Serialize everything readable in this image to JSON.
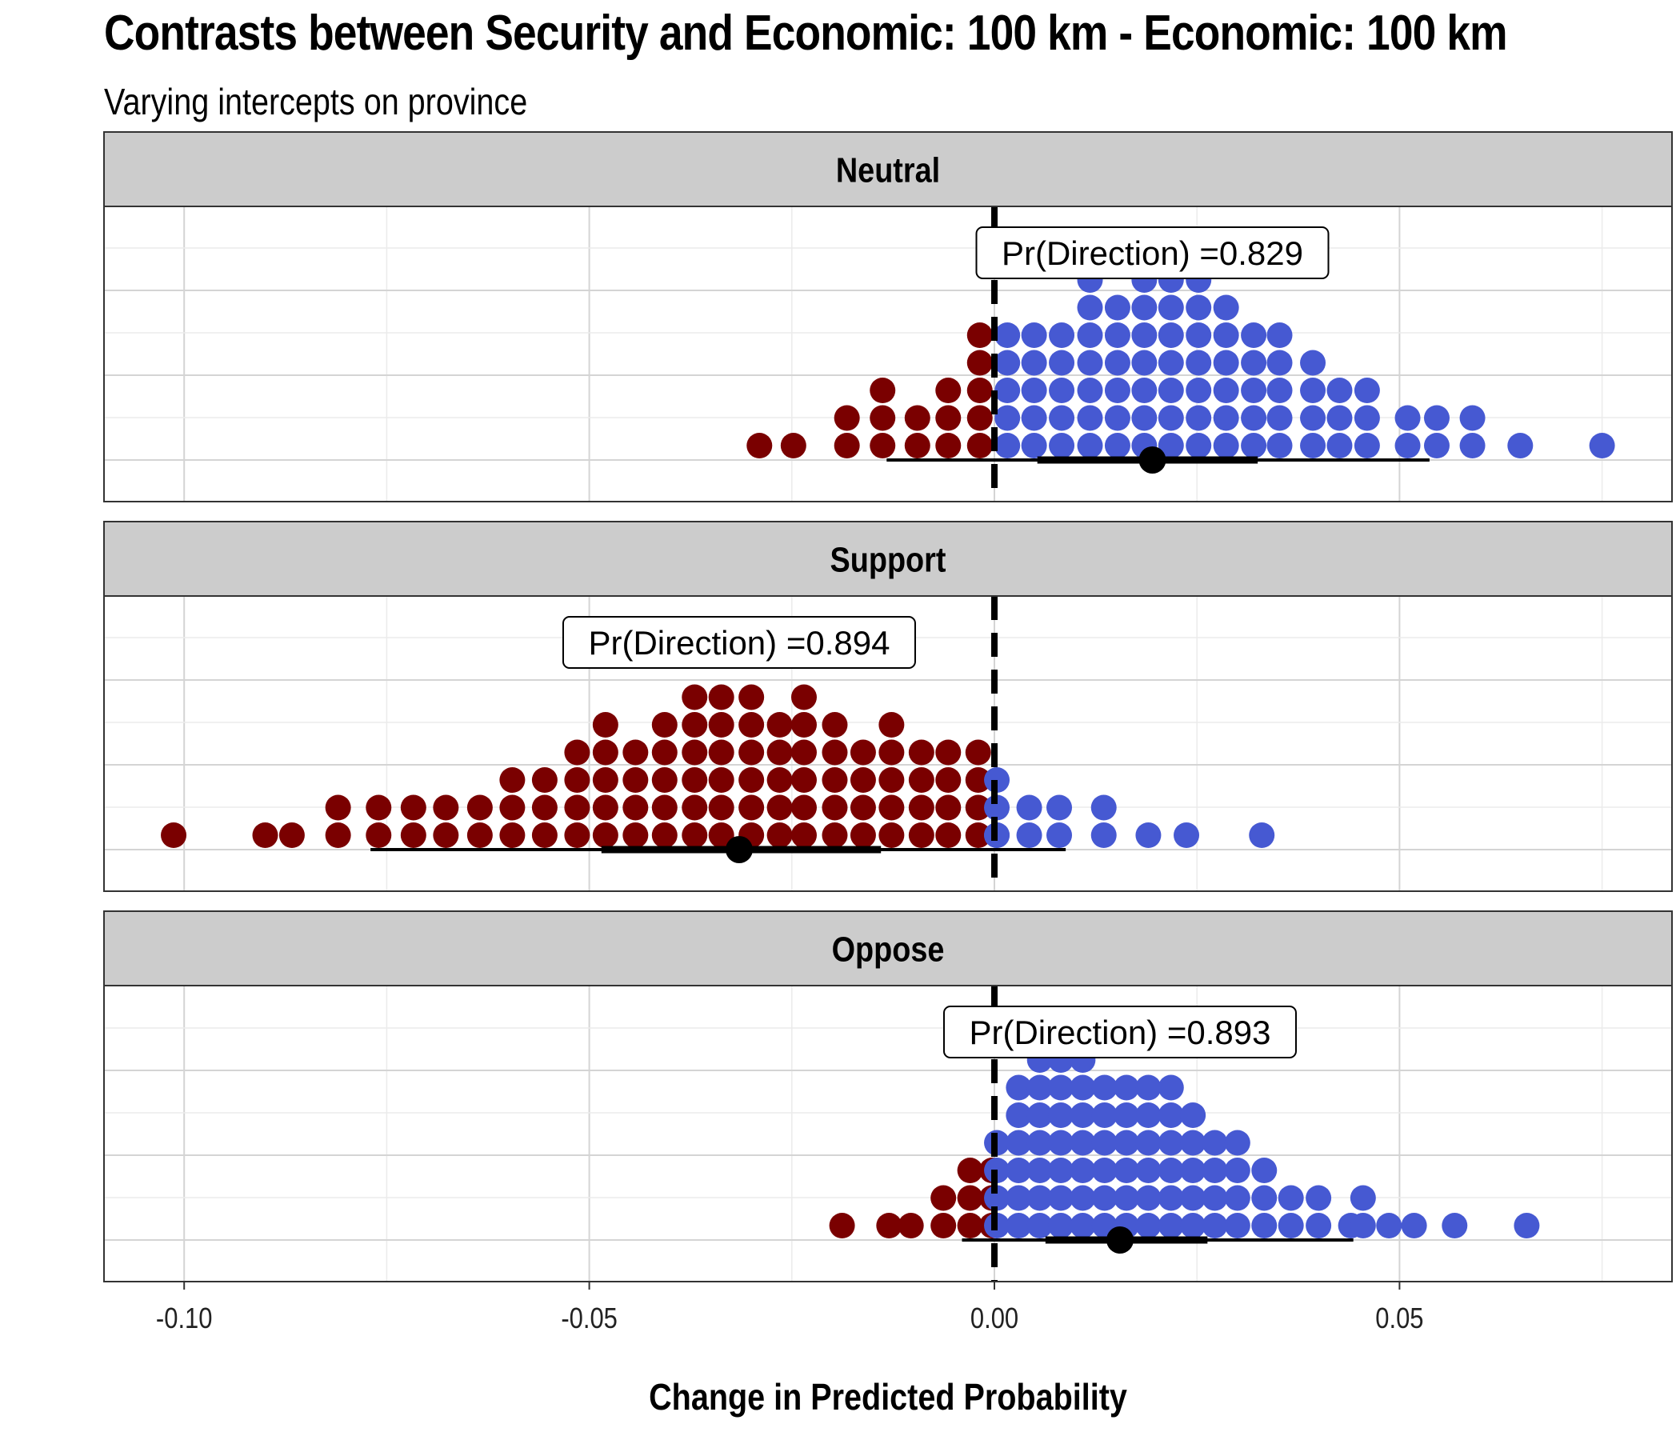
{
  "chart_data": {
    "type": "dotplot",
    "title": "Contrasts between Security and Economic: 100 km - Economic: 100 km",
    "subtitle": "Varying intercepts on province",
    "xlabel": "Change in Predicted Probability",
    "xlim": [
      -0.11,
      0.083
    ],
    "xticks": [
      -0.1,
      -0.05,
      0.0,
      0.05
    ],
    "xtick_labels": [
      "-0.10",
      "-0.05",
      "0.00",
      "0.05"
    ],
    "reference_line": 0,
    "colors": {
      "negative": "#7a0000",
      "positive": "#4659d2",
      "strip": "#cccccc",
      "interval": "#000000"
    },
    "panels": [
      {
        "name": "Neutral",
        "label": "Pr(Direction) =0.829",
        "label_x": 0.0195,
        "point": 0.0195,
        "interval_66": [
          0.0053,
          0.0325
        ],
        "interval_95": [
          -0.0133,
          0.0537
        ],
        "columns": [
          [
            -0.029,
            1
          ],
          [
            -0.0248,
            1
          ],
          [
            -0.0182,
            2
          ],
          [
            -0.0138,
            3
          ],
          [
            -0.0095,
            2
          ],
          [
            -0.0057,
            3
          ],
          [
            -0.0018,
            5
          ],
          [
            0.0016,
            5
          ],
          [
            0.0049,
            5
          ],
          [
            0.0083,
            5
          ],
          [
            0.0118,
            7
          ],
          [
            0.0152,
            6
          ],
          [
            0.0185,
            7
          ],
          [
            0.0218,
            7
          ],
          [
            0.0252,
            7
          ],
          [
            0.0286,
            6
          ],
          [
            0.032,
            5
          ],
          [
            0.0352,
            5
          ],
          [
            0.0393,
            4
          ],
          [
            0.0426,
            3
          ],
          [
            0.046,
            3
          ],
          [
            0.051,
            2
          ],
          [
            0.0546,
            2
          ],
          [
            0.059,
            2
          ],
          [
            0.0649,
            1
          ],
          [
            0.075,
            1
          ]
        ]
      },
      {
        "name": "Support",
        "label": "Pr(Direction) =0.894",
        "label_x": -0.0315,
        "point": -0.0315,
        "interval_66": [
          -0.0485,
          -0.014
        ],
        "interval_95": [
          -0.077,
          0.0088
        ],
        "columns": [
          [
            -0.1013,
            1
          ],
          [
            -0.09,
            1
          ],
          [
            -0.0867,
            1
          ],
          [
            -0.081,
            2
          ],
          [
            -0.076,
            2
          ],
          [
            -0.0717,
            2
          ],
          [
            -0.0677,
            2
          ],
          [
            -0.0635,
            2
          ],
          [
            -0.0595,
            3
          ],
          [
            -0.0555,
            3
          ],
          [
            -0.0515,
            4
          ],
          [
            -0.048,
            5
          ],
          [
            -0.0443,
            4
          ],
          [
            -0.0407,
            5
          ],
          [
            -0.037,
            6
          ],
          [
            -0.0337,
            6
          ],
          [
            -0.03,
            6
          ],
          [
            -0.0265,
            5
          ],
          [
            -0.0235,
            6
          ],
          [
            -0.0197,
            5
          ],
          [
            -0.0162,
            4
          ],
          [
            -0.0127,
            5
          ],
          [
            -0.009,
            4
          ],
          [
            -0.0057,
            4
          ],
          [
            -0.002,
            4
          ],
          [
            0.0003,
            1
          ],
          [
            0.0003,
            3
          ],
          [
            0.0043,
            2
          ],
          [
            0.008,
            2
          ],
          [
            0.0135,
            2
          ],
          [
            0.019,
            1
          ],
          [
            0.0237,
            1
          ],
          [
            0.033,
            1
          ]
        ]
      },
      {
        "name": "Oppose",
        "label": "Pr(Direction) =0.893",
        "label_x": 0.0155,
        "point": 0.0155,
        "interval_66": [
          0.0063,
          0.0263
        ],
        "interval_95": [
          -0.004,
          0.0443
        ],
        "columns": [
          [
            -0.0188,
            1
          ],
          [
            -0.013,
            1
          ],
          [
            -0.0103,
            1
          ],
          [
            -0.0063,
            2
          ],
          [
            -0.003,
            3
          ],
          [
            -0.0003,
            3
          ],
          [
            0.0003,
            4
          ],
          [
            0.003,
            6
          ],
          [
            0.0056,
            7
          ],
          [
            0.0082,
            7
          ],
          [
            0.0109,
            7
          ],
          [
            0.0136,
            6
          ],
          [
            0.0163,
            6
          ],
          [
            0.019,
            6
          ],
          [
            0.0218,
            6
          ],
          [
            0.0245,
            5
          ],
          [
            0.0272,
            4
          ],
          [
            0.03,
            4
          ],
          [
            0.0333,
            3
          ],
          [
            0.0366,
            2
          ],
          [
            0.04,
            2
          ],
          [
            0.044,
            1
          ],
          [
            0.0455,
            2
          ],
          [
            0.0487,
            1
          ],
          [
            0.0518,
            1
          ],
          [
            0.0568,
            1
          ],
          [
            0.0657,
            1
          ]
        ]
      }
    ]
  }
}
